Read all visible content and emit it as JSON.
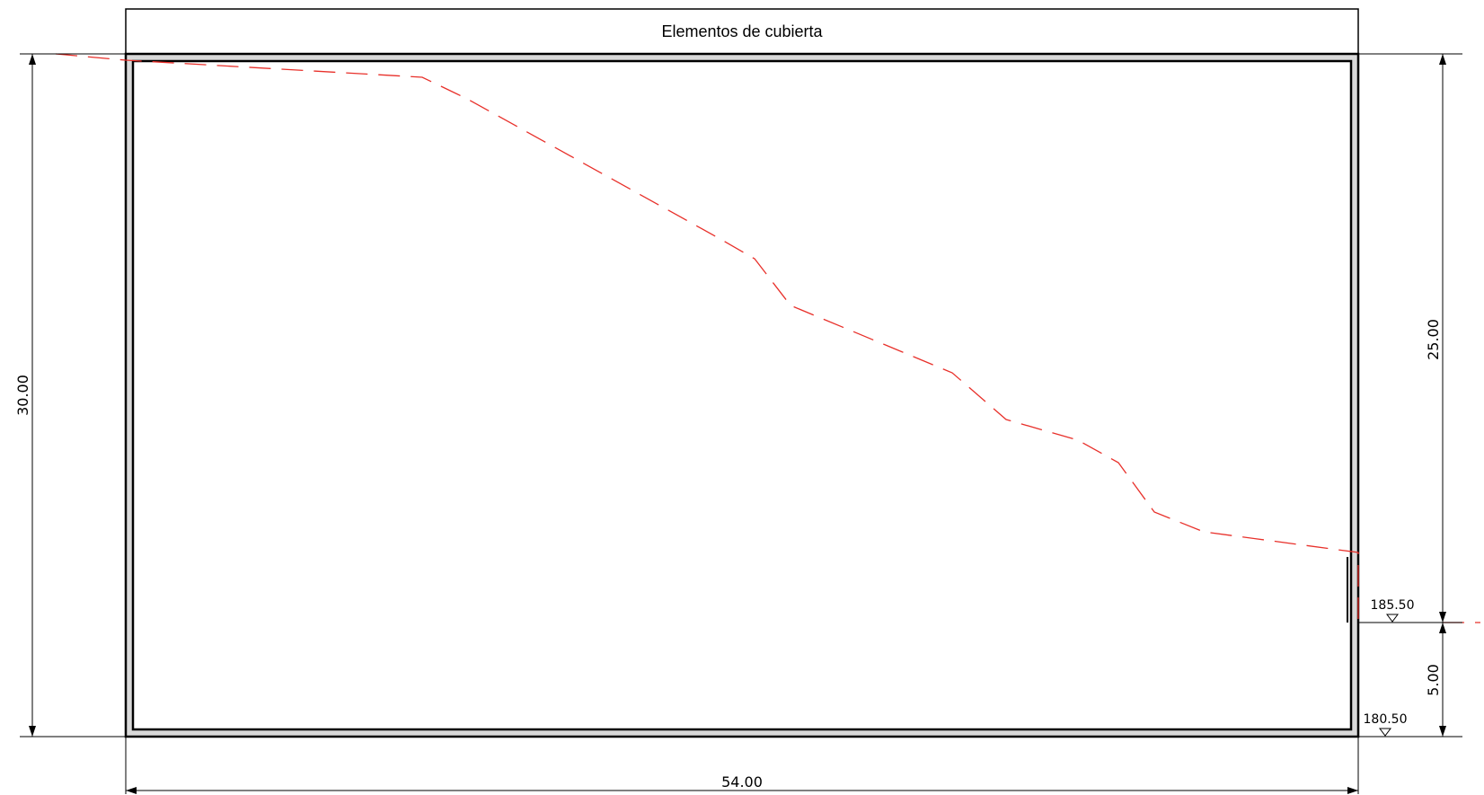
{
  "title": "Elementos de cubierta",
  "dimensions": {
    "width_bottom": "54.00",
    "height_left": "30.00",
    "height_right_upper": "25.00",
    "height_right_lower": "5.00"
  },
  "levels": {
    "upper": "185.50",
    "lower": "180.50"
  },
  "colors": {
    "outline": "#000000",
    "wall_fill": "#d9d9d9",
    "terrain_profile": "#e8302a"
  }
}
